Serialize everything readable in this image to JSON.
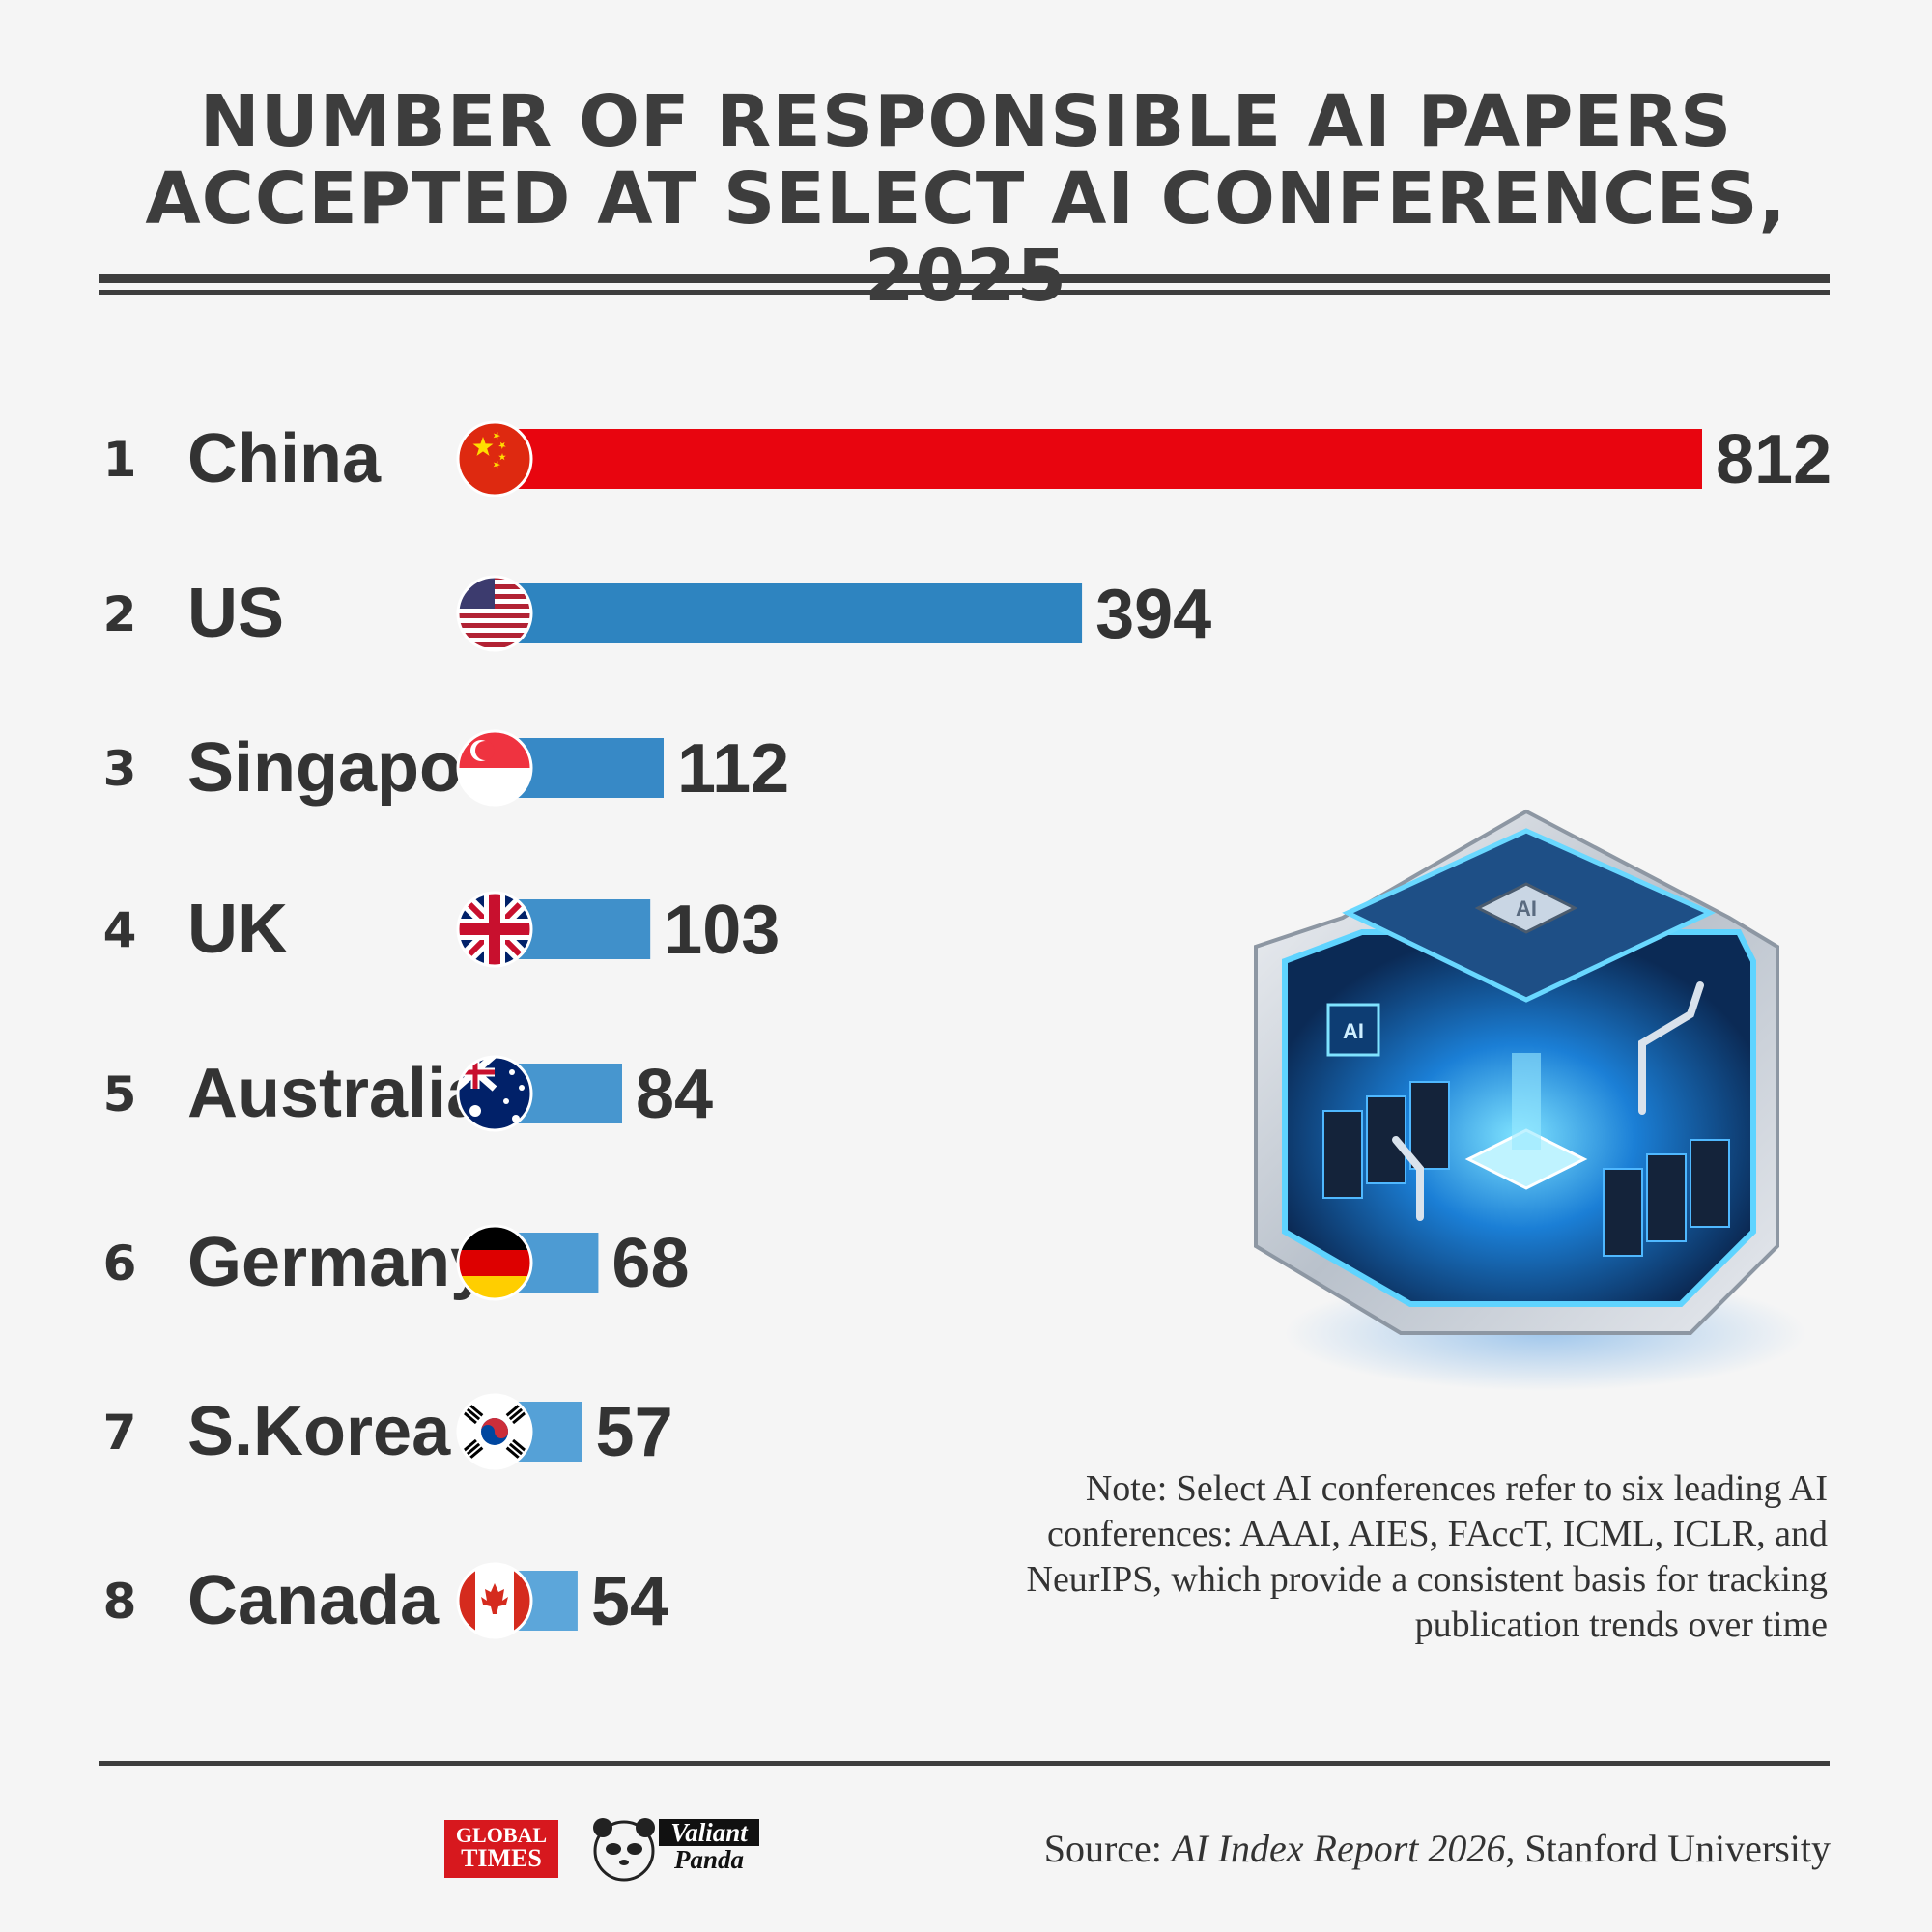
{
  "title_lines": [
    "NUMBER OF RESPONSIBLE AI PAPERS",
    "ACCEPTED AT SELECT AI CONFERENCES, 2025"
  ],
  "chart_data": {
    "type": "bar",
    "orientation": "horizontal",
    "title": "NUMBER OF RESPONSIBLE AI PAPERS ACCEPTED AT SELECT AI CONFERENCES, 2025",
    "ranks": [
      "1",
      "2",
      "3",
      "4",
      "5",
      "6",
      "7",
      "8"
    ],
    "categories": [
      "China",
      "US",
      "Singapore",
      "UK",
      "Australia",
      "Germany",
      "S.Korea",
      "Canada"
    ],
    "values": [
      812,
      394,
      112,
      103,
      84,
      68,
      57,
      54
    ],
    "value_labels": [
      "812",
      "394",
      "112",
      "103",
      "84",
      "68",
      "57",
      "54"
    ],
    "bar_colors": [
      "#e8050f",
      "#2e84c0",
      "#3789c6",
      "#4090ca",
      "#4796cf",
      "#4d9bd3",
      "#55a1d7",
      "#5ca6da"
    ],
    "flags": [
      "china-flag",
      "us-flag",
      "singapore-flag",
      "uk-flag",
      "australia-flag",
      "germany-flag",
      "south-korea-flag",
      "canada-flag"
    ],
    "grid": false,
    "xlabel": "",
    "ylabel": ""
  },
  "note": "Note: Select AI conferences refer to six leading AI conferences: AAAI, AIES, FAccT, ICML, ICLR, and NeurIPS, which provide a consistent basis for tracking publication trends over time",
  "source": {
    "prefix": "Source: ",
    "report": "AI Index Report 2026",
    "suffix": ", Stanford University"
  },
  "logos": {
    "global_times_line1": "GLOBAL",
    "global_times_line2": "TIMES",
    "panda_line1": "Valiant",
    "panda_line2": "Panda"
  },
  "illustration": {
    "chip_label": "AI",
    "side_label": "AI"
  }
}
